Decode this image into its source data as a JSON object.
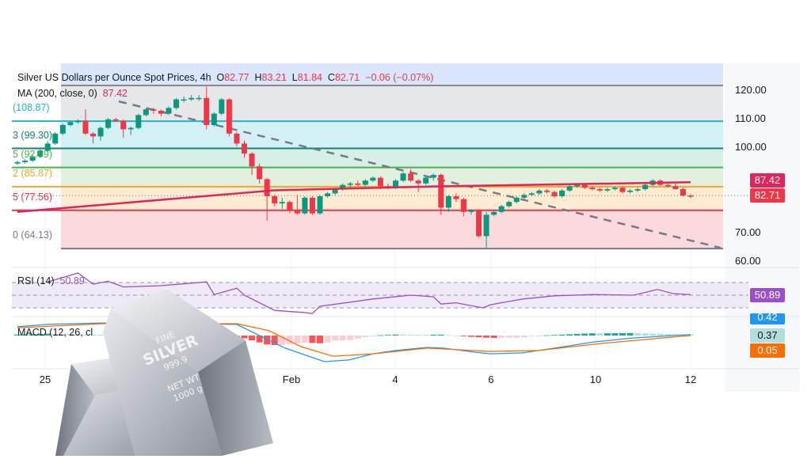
{
  "legend": {
    "title": "Silver US Dollars per Ounce Spot Prices, 4h",
    "o_label": "O",
    "o": "82.77",
    "h_label": "H",
    "h": "83.21",
    "l_label": "L",
    "l": "81.84",
    "c_label": "C",
    "c": "82.71",
    "change": "−0.06 (−0.07%)",
    "ma_label": "MA (200, close, 0)",
    "ma_value": "87.42",
    "rsi_label": "RSI (14)",
    "rsi_value": "50.89",
    "macd_label": "MACD (12, 26, cl"
  },
  "fib_labels": [
    {
      "text": "(108.87)",
      "value": 108.87,
      "color": "#22b5c5"
    },
    {
      "text": "3 (99.30)",
      "value": 99.3,
      "color": "#15836d"
    },
    {
      "text": "5 (92.59)",
      "value": 92.59,
      "color": "#4caf50"
    },
    {
      "text": "2 (85.87)",
      "value": 85.87,
      "color": "#f5a623"
    },
    {
      "text": "5 (77.56)",
      "value": 77.56,
      "color": "#e53945"
    },
    {
      "text": "0 (64.13)",
      "value": 64.13,
      "color": "#787b86"
    }
  ],
  "price_axis": [
    "120.00",
    "110.00",
    "100.00",
    "70.00",
    "60.00"
  ],
  "badges": {
    "ma": {
      "text": "87.42",
      "color": "#e0245e"
    },
    "last": {
      "text": "82.71",
      "color": "#f23645"
    },
    "rsi": {
      "text": "50.89",
      "color": "#9c4fc8"
    },
    "macd": {
      "text": "0.42",
      "color": "#2196f3"
    },
    "hist": {
      "text": "0.37",
      "color": "#b2dfdb"
    },
    "signal": {
      "text": "0.05",
      "color": "#ff6d00"
    }
  },
  "date_axis": [
    "25",
    "Feb",
    "4",
    "6",
    "10",
    "12"
  ],
  "logo_text": {
    "line1": "FINE",
    "line2": "SILVER",
    "line3": "999.9",
    "line4": "NET WT",
    "line5": "1000 g"
  },
  "chart_data": {
    "type": "candlestick",
    "title": "Silver US Dollars per Ounce Spot Prices, 4h",
    "ylim": [
      60,
      125
    ],
    "colors": {
      "up": "#089981",
      "down": "#f23645",
      "ma": "#e0245e",
      "rsi": "#9c4fc8",
      "macd": "#2196f3",
      "signal": "#ff6d00"
    },
    "fib_levels": [
      121.4,
      108.87,
      99.3,
      92.59,
      85.87,
      77.56,
      64.13
    ],
    "ohlc": [
      [
        94,
        95,
        93.5,
        94.5
      ],
      [
        94.5,
        95.5,
        94,
        95
      ],
      [
        95,
        97,
        94.5,
        96.5
      ],
      [
        96.5,
        99,
        96,
        98.5
      ],
      [
        98.5,
        102,
        98,
        101
      ],
      [
        101,
        105,
        100.5,
        104.5
      ],
      [
        104.5,
        108,
        104,
        107.5
      ],
      [
        107.5,
        109,
        107,
        108.5
      ],
      [
        108.5,
        109.5,
        108,
        109
      ],
      [
        109,
        113,
        104,
        104.5
      ],
      [
        104.5,
        105,
        101,
        103.5
      ],
      [
        103.5,
        107,
        102,
        106.5
      ],
      [
        106.5,
        110,
        106,
        109.5
      ],
      [
        109.5,
        110,
        108.5,
        109
      ],
      [
        109,
        109.5,
        103,
        106
      ],
      [
        106,
        107,
        104,
        106.5
      ],
      [
        106.5,
        111.5,
        106,
        111
      ],
      [
        111,
        113.5,
        110.5,
        113
      ],
      [
        113,
        113.5,
        111.5,
        112.5
      ],
      [
        112.5,
        113,
        110.5,
        111.5
      ],
      [
        111.5,
        114,
        111,
        113.5
      ],
      [
        113.5,
        117,
        113,
        116.5
      ],
      [
        116.5,
        117.5,
        115.5,
        116.5
      ],
      [
        116.5,
        118,
        116,
        117
      ],
      [
        117,
        118,
        116,
        117
      ],
      [
        117,
        121,
        106,
        107.5
      ],
      [
        107.5,
        112,
        107,
        111.5
      ],
      [
        111.5,
        117,
        111,
        116.5
      ],
      [
        116.5,
        117,
        103.5,
        104.5
      ],
      [
        104.5,
        105,
        100,
        101
      ],
      [
        101,
        102,
        96,
        97.5
      ],
      [
        97.5,
        98,
        90,
        93
      ],
      [
        93,
        94,
        87,
        88.5
      ],
      [
        88.5,
        89,
        74,
        82.5
      ],
      [
        82.5,
        83,
        79,
        80
      ],
      [
        80,
        82,
        78,
        80.5
      ],
      [
        80.5,
        81,
        76.5,
        77.5
      ],
      [
        77.5,
        83,
        76,
        76.5
      ],
      [
        76.5,
        82.5,
        76,
        82
      ],
      [
        82,
        82.5,
        76,
        76.5
      ],
      [
        76.5,
        83,
        76,
        82.5
      ],
      [
        82.5,
        84,
        82,
        83.5
      ],
      [
        83.5,
        85.5,
        83,
        85
      ],
      [
        85,
        87,
        84.5,
        86.5
      ],
      [
        86.5,
        87.5,
        85.5,
        87
      ],
      [
        87,
        88,
        86,
        86.5
      ],
      [
        86.5,
        88.5,
        86,
        88
      ],
      [
        88,
        89.5,
        87.5,
        89
      ],
      [
        89,
        89.5,
        85,
        86
      ],
      [
        86,
        87,
        85,
        85.5
      ],
      [
        85.5,
        88.5,
        85,
        88
      ],
      [
        88,
        91,
        87.5,
        90.5
      ],
      [
        90.5,
        92,
        87.5,
        88
      ],
      [
        88,
        88.5,
        84,
        87
      ],
      [
        87,
        89.5,
        86.5,
        89
      ],
      [
        89,
        90.5,
        88,
        90
      ],
      [
        90,
        90.5,
        76,
        78.5
      ],
      [
        78.5,
        83,
        77,
        82.5
      ],
      [
        82.5,
        83.5,
        80.5,
        81.5
      ],
      [
        81.5,
        82,
        75.5,
        77
      ],
      [
        77,
        78,
        76,
        77.5
      ],
      [
        77.5,
        78,
        68,
        68.5
      ],
      [
        68.5,
        77,
        64.5,
        76
      ],
      [
        76,
        77.5,
        75.5,
        77
      ],
      [
        77,
        79.5,
        76.5,
        79
      ],
      [
        79,
        81,
        78.5,
        80.5
      ],
      [
        80.5,
        82.5,
        80,
        82
      ],
      [
        82,
        83.5,
        81.5,
        83
      ],
      [
        83,
        84,
        82.5,
        83.5
      ],
      [
        83.5,
        85,
        83,
        84.5
      ],
      [
        84.5,
        85,
        83.5,
        84
      ],
      [
        84,
        84.5,
        82,
        82.5
      ],
      [
        82.5,
        85,
        82,
        84.5
      ],
      [
        84.5,
        86.5,
        84,
        86
      ],
      [
        86,
        87,
        85.5,
        86.5
      ],
      [
        86.5,
        87,
        85,
        85.5
      ],
      [
        85.5,
        86,
        84.5,
        85
      ],
      [
        85,
        85.5,
        84,
        84.5
      ],
      [
        84.5,
        85.5,
        84,
        85
      ],
      [
        85,
        86,
        84.5,
        85.5
      ],
      [
        85.5,
        86,
        83.5,
        84
      ],
      [
        84,
        85,
        83.5,
        84.5
      ],
      [
        84.5,
        85.5,
        84,
        85
      ],
      [
        85,
        87,
        84.5,
        86.5
      ],
      [
        86.5,
        88.5,
        86,
        88
      ],
      [
        88,
        88.5,
        86,
        86.5
      ],
      [
        86.5,
        87,
        85.5,
        86
      ],
      [
        86,
        87,
        85,
        85
      ],
      [
        85,
        85.5,
        82.5,
        82.77
      ],
      [
        82.77,
        83.21,
        81.84,
        82.71
      ]
    ],
    "ma200": [
      [
        0,
        77.0
      ],
      [
        34,
        84.6
      ],
      [
        56,
        86.0
      ],
      [
        89,
        87.42
      ]
    ],
    "trendline": [
      [
        13.4,
        115.8
      ],
      [
        93,
        64.4
      ]
    ],
    "rsi": [
      [
        4,
        71
      ],
      [
        8,
        85
      ],
      [
        10,
        67.5
      ],
      [
        12,
        72
      ],
      [
        14,
        63
      ],
      [
        19,
        65
      ],
      [
        25,
        71
      ],
      [
        26,
        51
      ],
      [
        29,
        61
      ],
      [
        30,
        50
      ],
      [
        34,
        26
      ],
      [
        38,
        22.5
      ],
      [
        39,
        21
      ],
      [
        40,
        32.5
      ],
      [
        44,
        39
      ],
      [
        47,
        44
      ],
      [
        52,
        50
      ],
      [
        55,
        47.5
      ],
      [
        56,
        36
      ],
      [
        58,
        38
      ],
      [
        61.5,
        30
      ],
      [
        62.6,
        35
      ],
      [
        66.8,
        44
      ],
      [
        71,
        49
      ],
      [
        76.2,
        51
      ],
      [
        81.5,
        50
      ],
      [
        84.6,
        59
      ],
      [
        86.7,
        52.5
      ],
      [
        89,
        50.89
      ]
    ],
    "rsi_levels": [
      70,
      50,
      30
    ],
    "macd": [
      [
        0,
        3.7
      ],
      [
        4,
        4.7
      ],
      [
        11.3,
        5.3
      ],
      [
        29,
        4.7
      ],
      [
        32.2,
        -0.3
      ],
      [
        35.4,
        -5.3
      ],
      [
        38.5,
        -8.7
      ],
      [
        40.6,
        -11
      ],
      [
        43.8,
        -10.3
      ],
      [
        47,
        -7.7
      ],
      [
        50,
        -6.3
      ],
      [
        54.2,
        -5
      ],
      [
        56.3,
        -5.3
      ],
      [
        60.5,
        -7
      ],
      [
        62.6,
        -7.7
      ],
      [
        66.8,
        -7.3
      ],
      [
        71,
        -5.3
      ],
      [
        76.2,
        -2.7
      ],
      [
        81.5,
        -1
      ],
      [
        89,
        0.42
      ]
    ],
    "signal": [
      [
        0,
        3.3
      ],
      [
        11.3,
        5
      ],
      [
        29,
        5
      ],
      [
        33.3,
        2
      ],
      [
        37.5,
        -4.7
      ],
      [
        41.7,
        -8.7
      ],
      [
        47,
        -7.7
      ],
      [
        54.2,
        -5.3
      ],
      [
        62.6,
        -6.7
      ],
      [
        68.9,
        -6.3
      ],
      [
        77.3,
        -3.3
      ],
      [
        89,
        0.05
      ]
    ]
  }
}
